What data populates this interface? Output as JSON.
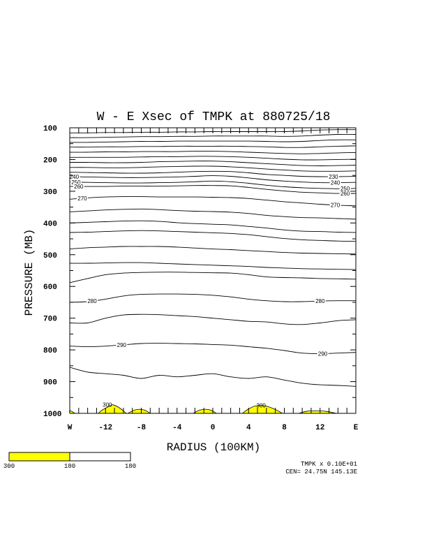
{
  "chart_data": {
    "type": "contour",
    "title": "W - E Xsec of TMPK at 880725/18",
    "xlabel": "RADIUS (100KM)",
    "ylabel": "PRESSURE (MB)",
    "xlim": [
      -16,
      16
    ],
    "ylim": [
      1000,
      100
    ],
    "x_ticks": [
      {
        "value": -16,
        "label": "W"
      },
      {
        "value": -12,
        "label": "-12"
      },
      {
        "value": -8,
        "label": "-8"
      },
      {
        "value": -4,
        "label": "-4"
      },
      {
        "value": 0,
        "label": "0"
      },
      {
        "value": 4,
        "label": "4"
      },
      {
        "value": 8,
        "label": "8"
      },
      {
        "value": 12,
        "label": "12"
      },
      {
        "value": 16,
        "label": "E"
      }
    ],
    "y_ticks": [
      {
        "value": 100,
        "label": "100"
      },
      {
        "value": 200,
        "label": "200"
      },
      {
        "value": 300,
        "label": "300"
      },
      {
        "value": 400,
        "label": "400"
      },
      {
        "value": 500,
        "label": "500"
      },
      {
        "value": 600,
        "label": "600"
      },
      {
        "value": 700,
        "label": "700"
      },
      {
        "value": 800,
        "label": "800"
      },
      {
        "value": 900,
        "label": "900"
      },
      {
        "value": 1000,
        "label": "1000"
      }
    ],
    "contour_x": [
      -16,
      -14,
      -12,
      -10,
      -8,
      -6,
      -4,
      -2,
      0,
      2,
      4,
      6,
      8,
      10,
      12,
      14,
      16
    ],
    "contours": [
      {
        "level": null,
        "p": [
          116,
          116,
          115,
          115,
          114,
          114,
          113,
          113,
          112,
          112,
          112,
          112,
          112,
          110,
          107,
          106,
          106
        ]
      },
      {
        "level": null,
        "p": [
          131,
          131,
          130,
          129,
          128,
          128,
          127,
          127,
          126,
          126,
          126,
          126,
          127,
          126,
          123,
          121,
          121
        ]
      },
      {
        "level": null,
        "p": [
          146,
          146,
          145,
          144,
          143,
          143,
          142,
          142,
          142,
          142,
          142,
          143,
          144,
          143,
          140,
          138,
          138
        ]
      },
      {
        "level": null,
        "p": [
          161,
          161,
          160,
          160,
          159,
          159,
          158,
          158,
          158,
          158,
          159,
          160,
          162,
          162,
          160,
          158,
          157
        ]
      },
      {
        "level": null,
        "p": [
          177,
          177,
          176,
          176,
          175,
          175,
          175,
          174,
          174,
          175,
          177,
          179,
          181,
          182,
          181,
          179,
          178
        ]
      },
      {
        "level": null,
        "p": [
          193,
          193,
          193,
          193,
          192,
          191,
          191,
          190,
          190,
          191,
          193,
          196,
          199,
          201,
          201,
          200,
          199
        ]
      },
      {
        "level": null,
        "p": [
          209,
          209,
          210,
          210,
          209,
          207,
          206,
          205,
          205,
          207,
          210,
          213,
          216,
          219,
          220,
          219,
          218
        ]
      },
      {
        "level": null,
        "p": [
          225,
          225,
          226,
          226,
          225,
          223,
          222,
          221,
          221,
          223,
          226,
          230,
          233,
          236,
          237,
          237,
          236
        ]
      },
      {
        "level": 230,
        "p": [
          240,
          241,
          242,
          243,
          243,
          242,
          240,
          238,
          237,
          238,
          242,
          247,
          250,
          253,
          254,
          254,
          253
        ],
        "labels": [
          {
            "x": 13.5,
            "text": "230"
          }
        ]
      },
      {
        "level": 240,
        "p": [
          254,
          255,
          256,
          257,
          257,
          256,
          255,
          253,
          251,
          253,
          258,
          264,
          268,
          271,
          273,
          273,
          272
        ],
        "labels": [
          {
            "x": -15.5,
            "text": "240"
          },
          {
            "x": 13.7,
            "text": "240"
          }
        ]
      },
      {
        "level": 250,
        "p": [
          271,
          272,
          273,
          274,
          274,
          273,
          272,
          270,
          268,
          270,
          275,
          281,
          286,
          289,
          291,
          292,
          291
        ],
        "labels": [
          {
            "x": -15.3,
            "text": "250"
          },
          {
            "x": 14.8,
            "text": "250"
          }
        ]
      },
      {
        "level": 260,
        "p": [
          285,
          285,
          285,
          284,
          284,
          284,
          283,
          282,
          282,
          283,
          288,
          294,
          299,
          303,
          305,
          307,
          307
        ],
        "labels": [
          {
            "x": -15.0,
            "text": "260"
          },
          {
            "x": 14.8,
            "text": "260"
          }
        ]
      },
      {
        "level": 270,
        "p": [
          325,
          321,
          318,
          317,
          317,
          318,
          318,
          318,
          319,
          320,
          323,
          328,
          333,
          337,
          341,
          344,
          346
        ],
        "labels": [
          {
            "x": -14.6,
            "text": "270"
          },
          {
            "x": 13.7,
            "text": "270"
          }
        ]
      },
      {
        "level": null,
        "p": [
          365,
          362,
          359,
          357,
          356,
          358,
          361,
          363,
          364,
          366,
          370,
          376,
          380,
          383,
          384,
          386,
          388
        ]
      },
      {
        "level": null,
        "p": [
          400,
          398,
          396,
          394,
          393,
          395,
          399,
          402,
          404,
          406,
          411,
          416,
          422,
          426,
          427,
          429,
          430
        ]
      },
      {
        "level": null,
        "p": [
          430,
          429,
          427,
          425,
          424,
          425,
          427,
          429,
          431,
          433,
          437,
          443,
          449,
          453,
          455,
          457,
          458
        ]
      },
      {
        "level": null,
        "p": [
          482,
          478,
          476,
          474,
          474,
          474,
          476,
          479,
          482,
          484,
          487,
          490,
          493,
          495,
          496,
          497,
          498
        ]
      },
      {
        "level": null,
        "p": [
          527,
          527,
          526,
          525,
          525,
          527,
          529,
          531,
          533,
          535,
          537,
          540,
          542,
          544,
          545,
          546,
          547
        ]
      },
      {
        "level": null,
        "p": [
          588,
          575,
          563,
          558,
          556,
          555,
          555,
          556,
          557,
          558,
          563,
          570,
          572,
          573,
          575,
          576,
          577
        ]
      },
      {
        "level": 280,
        "p": [
          650,
          648,
          640,
          630,
          625,
          624,
          624,
          625,
          628,
          633,
          640,
          645,
          648,
          648,
          646,
          645,
          645
        ],
        "labels": [
          {
            "x": -13.5,
            "text": "280"
          },
          {
            "x": 12.0,
            "text": "280"
          }
        ]
      },
      {
        "level": null,
        "p": [
          715,
          715,
          700,
          690,
          688,
          689,
          692,
          695,
          700,
          705,
          710,
          712,
          718,
          720,
          715,
          708,
          705
        ]
      },
      {
        "level": 290,
        "p": [
          788,
          790,
          788,
          784,
          780,
          779,
          780,
          781,
          783,
          785,
          790,
          795,
          802,
          810,
          812,
          810,
          808
        ],
        "labels": [
          {
            "x": -10.2,
            "text": "290"
          },
          {
            "x": 12.3,
            "text": "290"
          }
        ]
      },
      {
        "level": null,
        "p": [
          855,
          870,
          875,
          880,
          890,
          880,
          885,
          880,
          875,
          885,
          890,
          885,
          895,
          905,
          910,
          912,
          915
        ]
      }
    ],
    "highlight_areas": [
      {
        "level": 300,
        "label_x": -11.8,
        "label_p": 972,
        "x": [
          -12.8,
          -10.0
        ],
        "p": [
          [
            -12.8,
            1000
          ],
          [
            -12.4,
            990
          ],
          [
            -11.6,
            978
          ],
          [
            -11.2,
            973
          ],
          [
            -10.6,
            980
          ],
          [
            -10.0,
            992
          ],
          [
            -9.7,
            1000
          ]
        ]
      },
      {
        "level": null,
        "x": [
          -9.5,
          -7.0
        ],
        "p": [
          [
            -9.5,
            1000
          ],
          [
            -8.8,
            990
          ],
          [
            -8.2,
            987
          ],
          [
            -7.6,
            990
          ],
          [
            -7.0,
            1000
          ]
        ]
      },
      {
        "level": null,
        "x": [
          -2.8,
          0.4
        ],
        "p": [
          [
            -2.2,
            1000
          ],
          [
            -1.5,
            990
          ],
          [
            -0.8,
            987
          ],
          [
            -0.2,
            990
          ],
          [
            0.4,
            1000
          ]
        ]
      },
      {
        "level": 300,
        "label_x": 5.4,
        "label_p": 975,
        "x": [
          3.3,
          7.8
        ],
        "p": [
          [
            3.3,
            1000
          ],
          [
            3.9,
            988
          ],
          [
            4.6,
            978
          ],
          [
            5.4,
            975
          ],
          [
            6.2,
            979
          ],
          [
            7.0,
            988
          ],
          [
            7.8,
            1000
          ]
        ]
      },
      {
        "level": null,
        "x": [
          9.0,
          13.8
        ],
        "p": [
          [
            9.6,
            1000
          ],
          [
            10.6,
            993
          ],
          [
            11.8,
            992
          ],
          [
            12.8,
            994
          ],
          [
            13.8,
            1000
          ]
        ]
      },
      {
        "level": null,
        "x": [
          -16,
          -15.6
        ],
        "p": [
          [
            -16,
            1000
          ],
          [
            -16,
            991
          ],
          [
            -15.6,
            997
          ],
          [
            -15.4,
            1000
          ]
        ]
      }
    ],
    "colorbar": {
      "labels": [
        "300",
        "180",
        "180"
      ],
      "colors": [
        "#ffff00",
        "#ffffff"
      ]
    },
    "info_lines": [
      "TMPK x  0.10E+01",
      "CEN= 24.75N  145.13E"
    ]
  }
}
